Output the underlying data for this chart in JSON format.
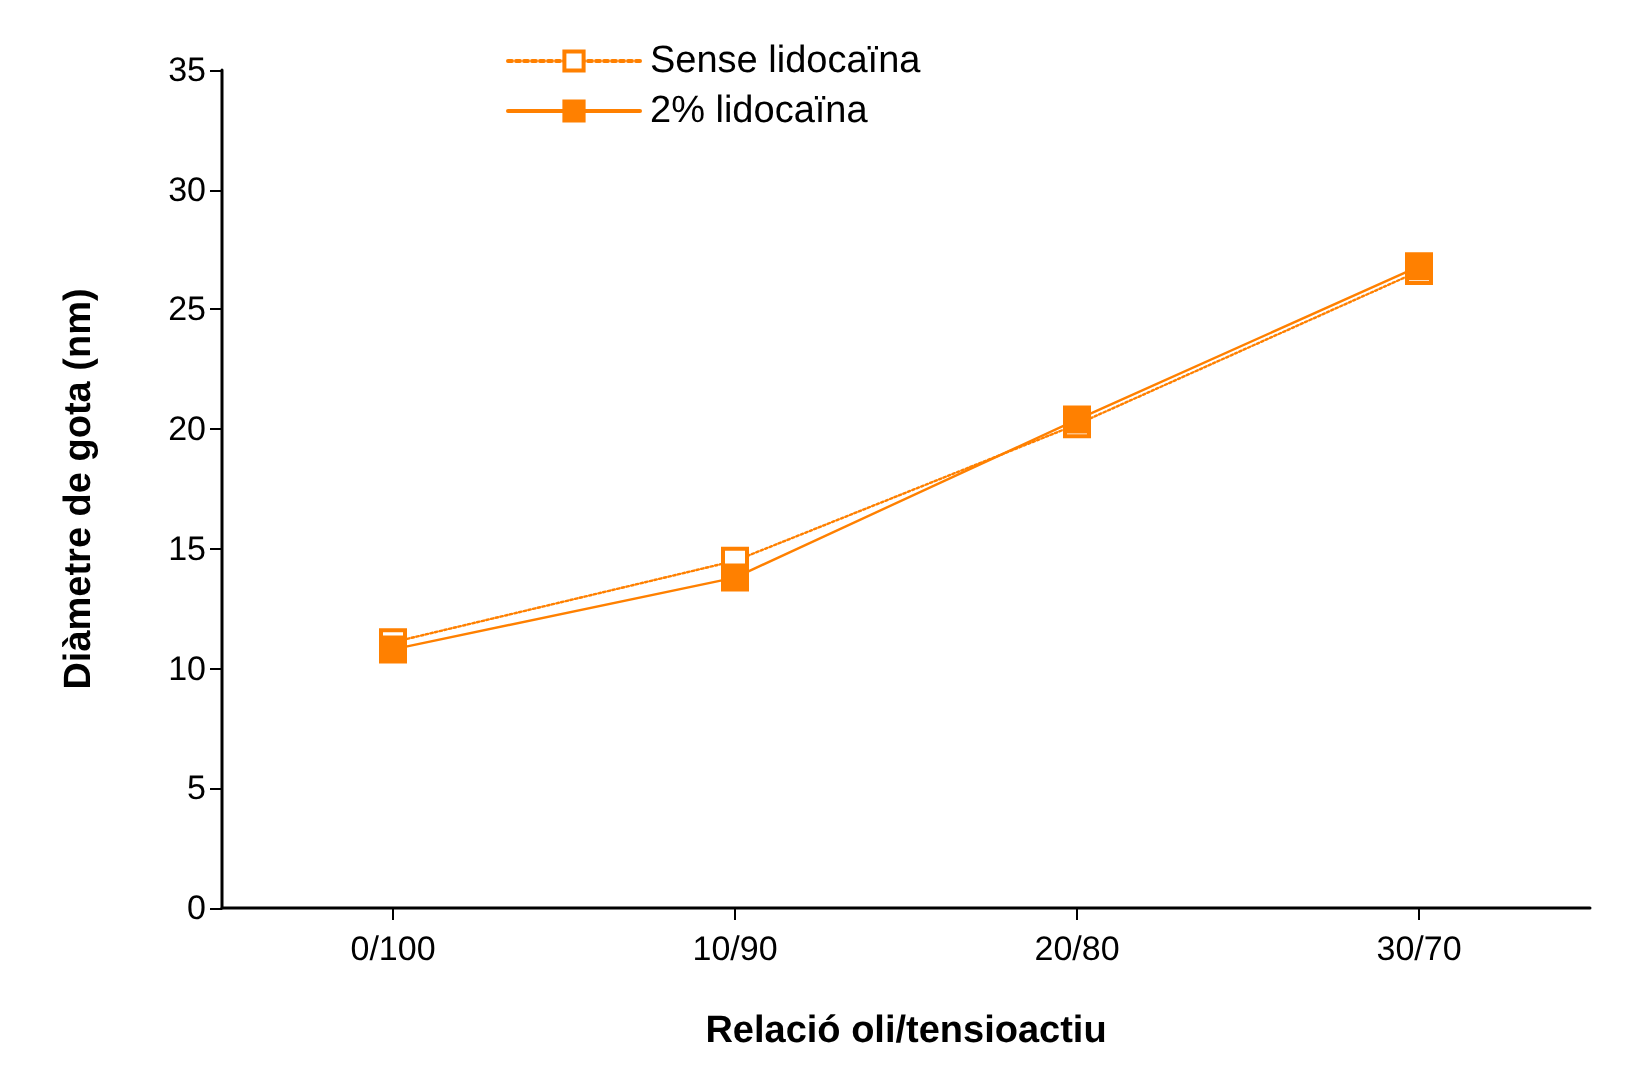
{
  "chart_data": {
    "type": "line",
    "xlabel": "Relació oli/tensioactiu",
    "ylabel": "Diàmetre de gota (nm)",
    "categories": [
      "0/100",
      "10/90",
      "20/80",
      "30/70"
    ],
    "series": [
      {
        "name": "Sense lidocaïna",
        "color": "#ff8000",
        "line_style": "dotted",
        "values": [
          11.1,
          14.5,
          20.2,
          26.6
        ]
      },
      {
        "name": "2% lidocaïna",
        "color": "#ff8000",
        "line_style": "solid",
        "values": [
          10.8,
          13.8,
          20.4,
          26.8
        ]
      }
    ],
    "ylim": [
      0,
      35
    ],
    "yticks": [
      0,
      5,
      10,
      15,
      20,
      25,
      30,
      35
    ],
    "marker": "square",
    "legend": "top",
    "grid": false
  }
}
